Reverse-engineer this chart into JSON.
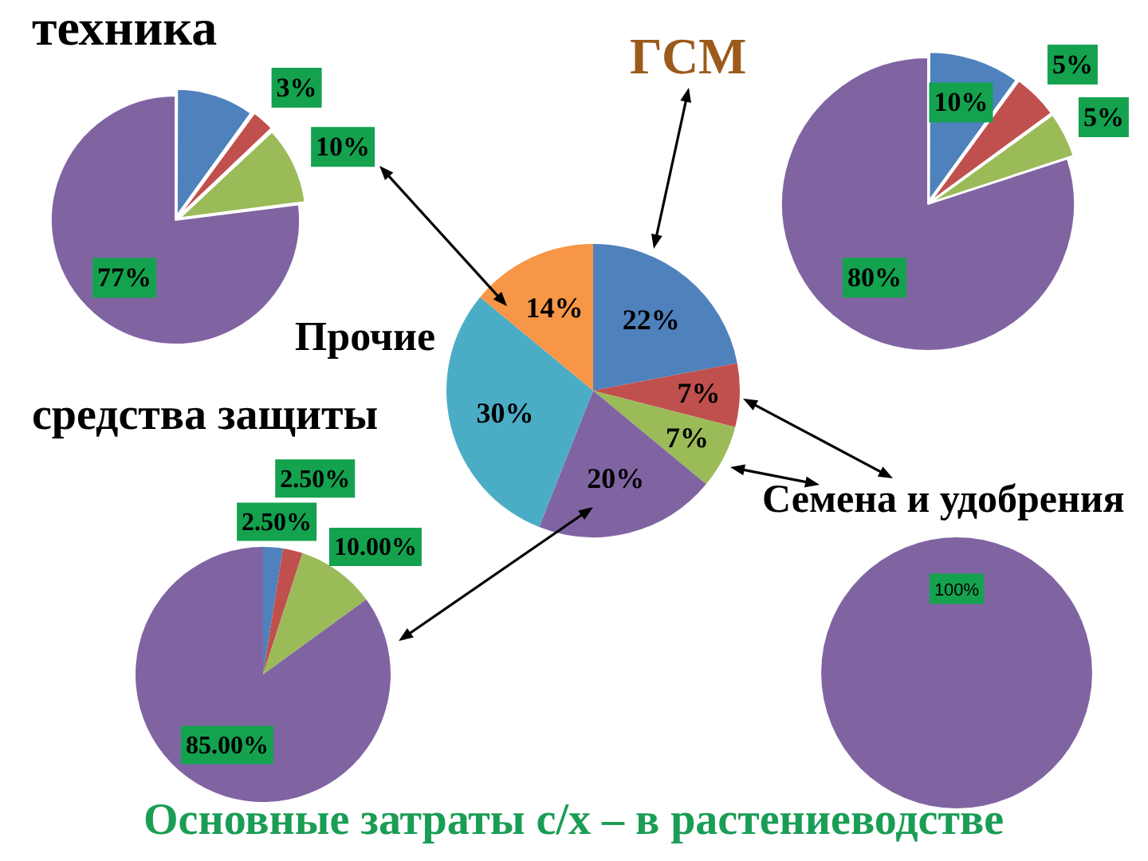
{
  "chart_data": [
    {
      "type": "pie",
      "title": "техника",
      "categories": [
        null,
        null,
        null,
        null
      ],
      "values": [
        10,
        3,
        10,
        77
      ],
      "colors": [
        "#4f81bd",
        "#c0504d",
        "#9bbb59",
        "#8064a2"
      ],
      "value_labels": [
        null,
        "3%",
        "10%",
        "77%"
      ]
    },
    {
      "type": "pie",
      "title": "ГСМ",
      "categories": [
        null,
        null,
        null,
        null
      ],
      "values": [
        10,
        5,
        5,
        80
      ],
      "colors": [
        "#4f81bd",
        "#c0504d",
        "#9bbb59",
        "#8064a2"
      ],
      "value_labels": [
        "10%",
        "5%",
        "5%",
        "80%"
      ]
    },
    {
      "type": "pie",
      "title": "Основные затраты с/х – в растениеводстве",
      "categories": [
        null,
        null,
        null,
        null,
        "Прочие",
        null
      ],
      "values": [
        22,
        7,
        7,
        20,
        30,
        14
      ],
      "colors": [
        "#4f81bd",
        "#c0504d",
        "#9bbb59",
        "#8064a2",
        "#4bacc6",
        "#f79646"
      ],
      "value_labels": [
        "22%",
        "7%",
        "7%",
        "20%",
        "30%",
        "14%"
      ]
    },
    {
      "type": "pie",
      "title": "средства защиты",
      "categories": [
        null,
        null,
        null,
        null
      ],
      "values": [
        2.5,
        2.5,
        10,
        85
      ],
      "colors": [
        "#4f81bd",
        "#c0504d",
        "#9bbb59",
        "#8064a2"
      ],
      "value_labels": [
        "2.50%",
        "2.50%",
        "10.00%",
        "85.00%"
      ]
    },
    {
      "type": "pie",
      "title": "Семена и удобрения",
      "categories": [
        null
      ],
      "values": [
        100
      ],
      "colors": [
        "#8064a2"
      ],
      "value_labels": [
        "100%"
      ]
    }
  ]
}
